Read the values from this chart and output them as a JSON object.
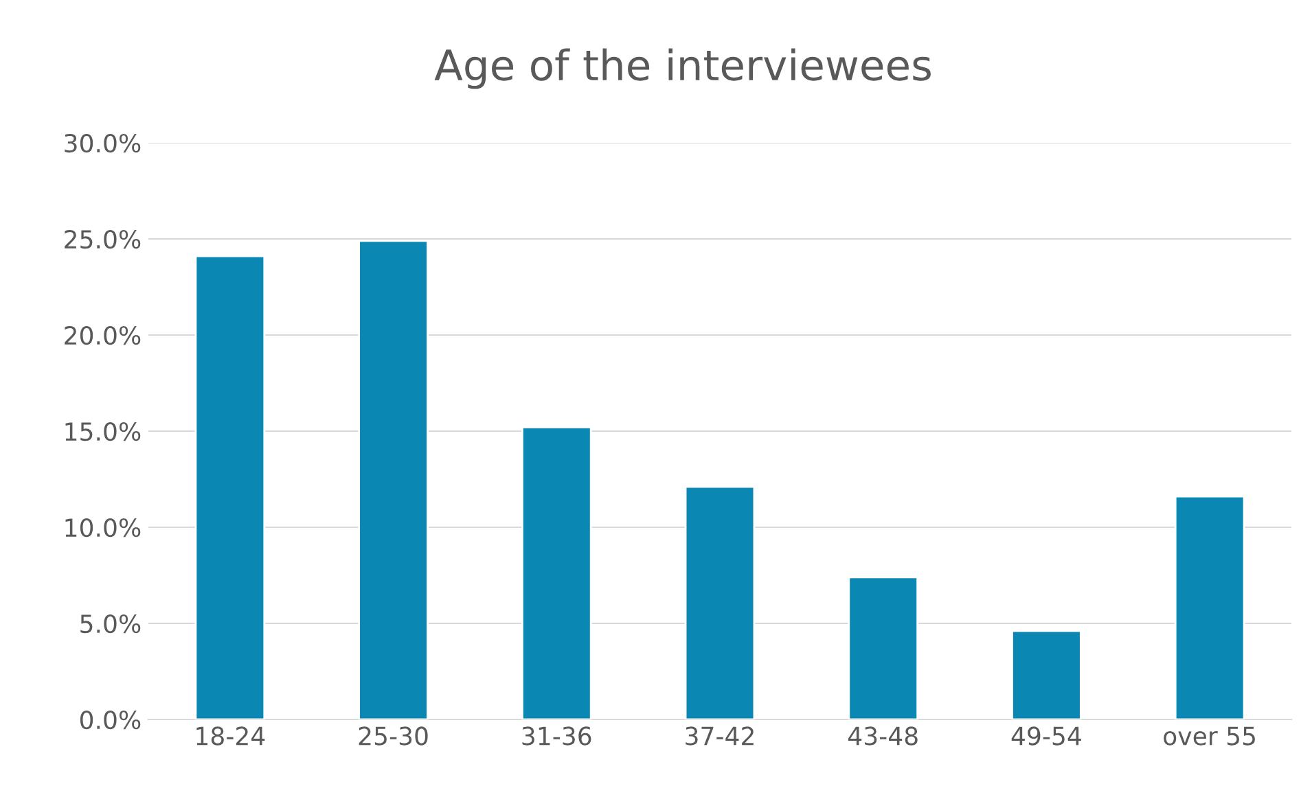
{
  "chart_data": {
    "type": "bar",
    "title": "Age of the interviewees",
    "categories": [
      "18-24",
      "25-30",
      "31-36",
      "37-42",
      "43-48",
      "49-54",
      "over 55"
    ],
    "values": [
      24.1,
      24.9,
      15.2,
      12.1,
      7.4,
      4.6,
      11.6
    ],
    "color": "#0a88b3",
    "ylim": [
      0,
      30
    ],
    "yticks": [
      {
        "value": 0,
        "label": "0.0%"
      },
      {
        "value": 5,
        "label": "5.0%"
      },
      {
        "value": 10,
        "label": "10.0%"
      },
      {
        "value": 15,
        "label": "15.0%"
      },
      {
        "value": 20,
        "label": "20.0%"
      },
      {
        "value": 25,
        "label": "25.0%"
      },
      {
        "value": 30,
        "label": "30.0%"
      }
    ],
    "grid": "y",
    "legend": false
  }
}
